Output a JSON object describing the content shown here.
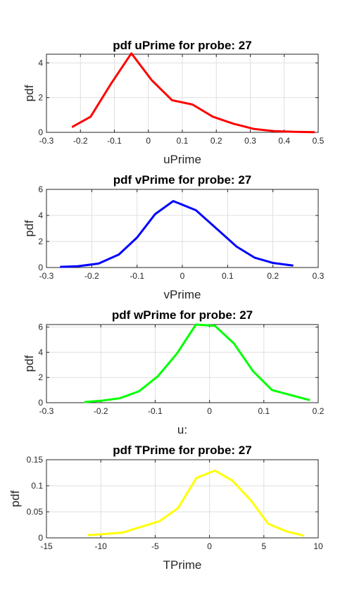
{
  "chart_data": [
    {
      "type": "line",
      "title": "pdf uPrime for probe: 27",
      "xlabel": "uPrime",
      "ylabel": "pdf",
      "xlim": [
        -0.3,
        0.5
      ],
      "ylim": [
        0,
        4.5
      ],
      "xticks": [
        -0.3,
        -0.2,
        -0.1,
        0,
        0.1,
        0.2,
        0.3,
        0.4,
        0.5
      ],
      "xticklabels": [
        "-0.3",
        "-0.2",
        "-0.1",
        "0",
        "0.1",
        "0.2",
        "0.3",
        "0.4",
        "0.5"
      ],
      "yticks": [
        0,
        2,
        4
      ],
      "yticklabels": [
        "0",
        "2",
        "4"
      ],
      "grid": true,
      "color": "#ff0000",
      "series": [
        {
          "x": [
            -0.225,
            -0.17,
            -0.11,
            -0.05,
            0.01,
            0.07,
            0.13,
            0.19,
            0.25,
            0.31,
            0.37,
            0.43,
            0.49
          ],
          "values": [
            0.3,
            0.9,
            2.8,
            4.55,
            3.0,
            1.85,
            1.6,
            0.9,
            0.5,
            0.2,
            0.07,
            0.03,
            0.01
          ]
        }
      ]
    },
    {
      "type": "line",
      "title": "pdf vPrime for probe: 27",
      "xlabel": "vPrime",
      "ylabel": "pdf",
      "xlim": [
        -0.3,
        0.3
      ],
      "ylim": [
        0,
        6
      ],
      "xticks": [
        -0.3,
        -0.2,
        -0.1,
        0,
        0.1,
        0.2,
        0.3
      ],
      "xticklabels": [
        "-0.3",
        "-0.2",
        "-0.1",
        "0",
        "0.1",
        "0.2",
        "0.3"
      ],
      "yticks": [
        0,
        2,
        4,
        6
      ],
      "yticklabels": [
        "0",
        "2",
        "4",
        "6"
      ],
      "grid": true,
      "color": "#0000ff",
      "series": [
        {
          "x": [
            -0.27,
            -0.23,
            -0.185,
            -0.14,
            -0.1,
            -0.06,
            -0.02,
            0.03,
            0.075,
            0.12,
            0.16,
            0.2,
            0.245
          ],
          "values": [
            0.05,
            0.1,
            0.3,
            1.0,
            2.3,
            4.1,
            5.1,
            4.4,
            3.0,
            1.6,
            0.75,
            0.35,
            0.15
          ]
        }
      ]
    },
    {
      "type": "line",
      "title": "pdf wPrime for probe: 27",
      "xlabel": "u:",
      "ylabel": "pdf",
      "xlim": [
        -0.3,
        0.2
      ],
      "ylim": [
        0,
        6.2
      ],
      "xticks": [
        -0.3,
        -0.2,
        -0.1,
        0,
        0.1,
        0.2
      ],
      "xticklabels": [
        "-0.3",
        "-0.2",
        "-0.1",
        "0",
        "0.1",
        "0.2"
      ],
      "yticks": [
        0,
        2,
        4,
        6
      ],
      "yticklabels": [
        "0",
        "2",
        "4",
        "6"
      ],
      "grid": true,
      "color": "#00ff00",
      "series": [
        {
          "x": [
            -0.23,
            -0.2,
            -0.165,
            -0.13,
            -0.095,
            -0.06,
            -0.025,
            0.01,
            0.045,
            0.08,
            0.115,
            0.15,
            0.185
          ],
          "values": [
            0.05,
            0.15,
            0.35,
            0.9,
            2.1,
            3.9,
            6.2,
            6.1,
            4.7,
            2.5,
            1.0,
            0.6,
            0.2
          ]
        }
      ]
    },
    {
      "type": "line",
      "title": "pdf TPrime for probe: 27",
      "xlabel": "TPrime",
      "ylabel": "pdf",
      "xlim": [
        -15,
        10
      ],
      "ylim": [
        0,
        0.15
      ],
      "xticks": [
        -15,
        -10,
        -5,
        0,
        5,
        10
      ],
      "xticklabels": [
        "-15",
        "-10",
        "-5",
        "0",
        "5",
        "10"
      ],
      "yticks": [
        0,
        0.05,
        0.1,
        0.15
      ],
      "yticklabels": [
        "0",
        "0.05",
        "0.1",
        "0.15"
      ],
      "grid": true,
      "color": "#ffff00",
      "series": [
        {
          "x": [
            -11.2,
            -8.0,
            -4.6,
            -2.9,
            -1.2,
            0.5,
            2.1,
            3.8,
            5.4,
            7.0,
            8.7
          ],
          "values": [
            0.005,
            0.01,
            0.032,
            0.057,
            0.115,
            0.129,
            0.11,
            0.072,
            0.027,
            0.013,
            0.004
          ]
        }
      ]
    }
  ]
}
